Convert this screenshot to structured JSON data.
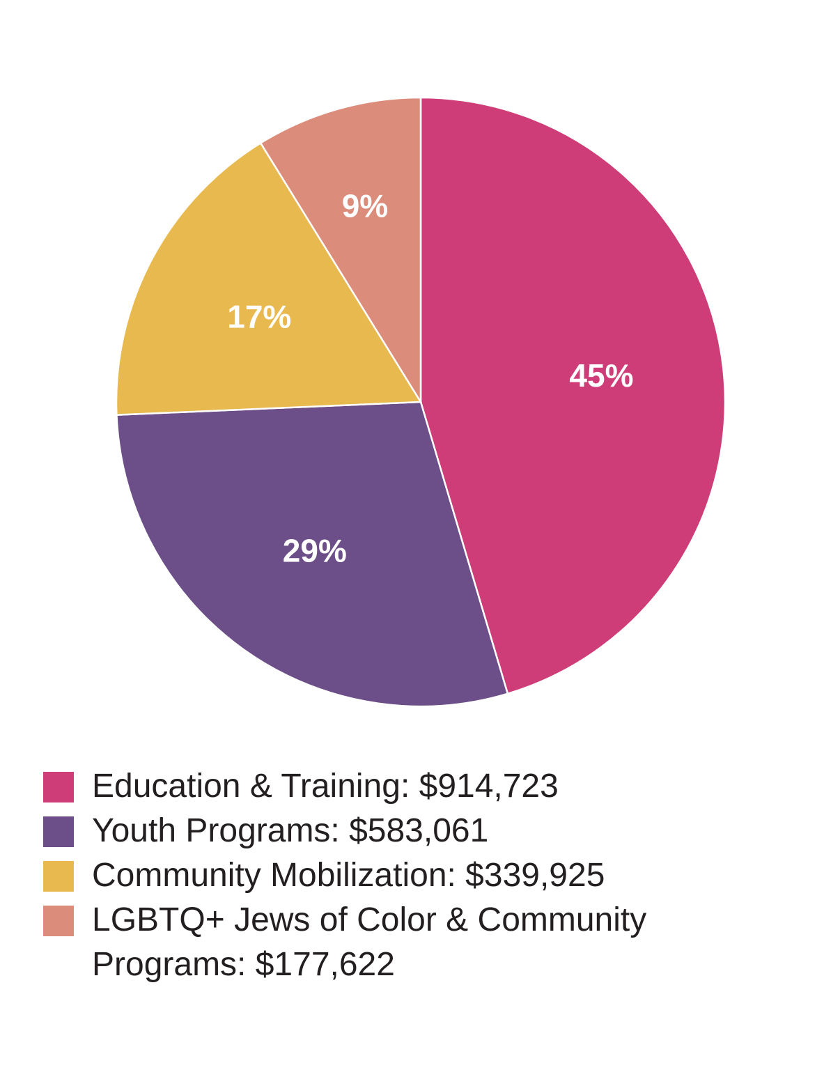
{
  "chart_data": {
    "type": "pie",
    "start_angle_deg": 0,
    "direction": "clockwise",
    "slices": [
      {
        "label": "Education & Training",
        "amount": "$914,723",
        "value": 914723,
        "percent": 45,
        "percent_label": "45%",
        "color": "#cf3d79"
      },
      {
        "label": "Youth Programs",
        "amount": "$583,061",
        "value": 583061,
        "percent": 29,
        "percent_label": "29%",
        "color": "#6c4e89"
      },
      {
        "label": "Community Mobilization",
        "amount": "$339,925",
        "value": 339925,
        "percent": 17,
        "percent_label": "17%",
        "color": "#e7b94f"
      },
      {
        "label": "LGBTQ+ Jews of Color & Community Programs",
        "amount": "$177,622",
        "value": 177622,
        "percent": 9,
        "percent_label": "9%",
        "color": "#dc8c7b"
      }
    ]
  },
  "legend": {
    "items": [
      {
        "text": "Education & Training: $914,723",
        "color": "#cf3d79"
      },
      {
        "text": "Youth Programs: $583,061",
        "color": "#6c4e89"
      },
      {
        "text": "Community Mobilization: $339,925",
        "color": "#e7b94f"
      },
      {
        "text": "LGBTQ+ Jews of Color & Community Programs: $177,622",
        "color": "#dc8c7b"
      }
    ]
  }
}
